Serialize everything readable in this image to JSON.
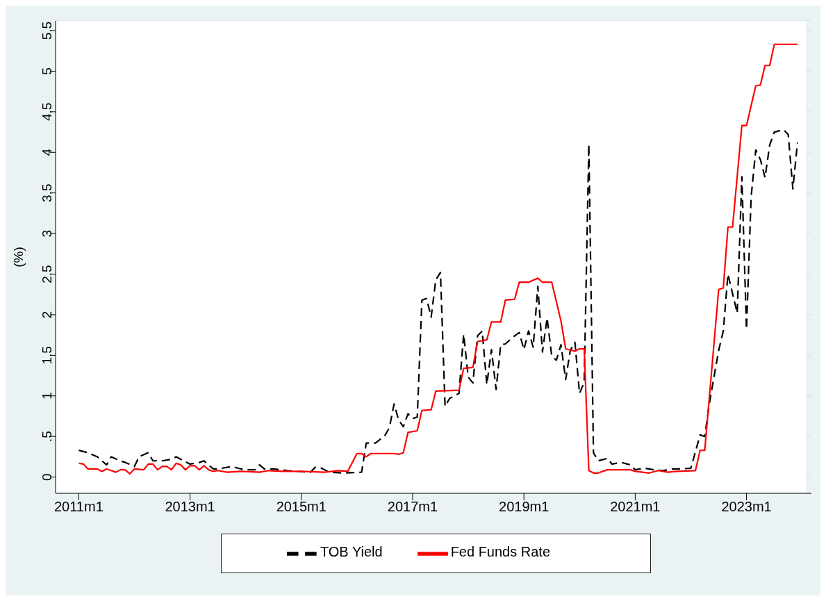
{
  "chart_data": {
    "type": "line",
    "ylabel": "(%)",
    "xlim": [
      "2010-08",
      "2024-03"
    ],
    "xticks": [
      {
        "value": "2011-01",
        "label": "2011m1"
      },
      {
        "value": "2013-01",
        "label": "2013m1"
      },
      {
        "value": "2015-01",
        "label": "2015m1"
      },
      {
        "value": "2017-01",
        "label": "2017m1"
      },
      {
        "value": "2019-01",
        "label": "2019m1"
      },
      {
        "value": "2021-01",
        "label": "2021m1"
      },
      {
        "value": "2023-01",
        "label": "2023m1"
      }
    ],
    "ylim": [
      -0.2,
      5.62
    ],
    "yticks": [
      0,
      {
        "value": 0.5,
        "label": ".5"
      },
      1,
      1.5,
      2,
      2.5,
      3,
      3.5,
      4,
      4.5,
      5,
      5.5
    ],
    "grid": "y",
    "legend": "bottom",
    "series": [
      {
        "name": "TOB Yield",
        "color": "#000000",
        "line_style": "dashed",
        "x": [
          "2011-01",
          "2011-03",
          "2011-05",
          "2011-07",
          "2011-08",
          "2011-10",
          "2011-11",
          "2012-01",
          "2012-02",
          "2012-04",
          "2012-05",
          "2012-07",
          "2012-09",
          "2012-10",
          "2013-01",
          "2013-03",
          "2013-04",
          "2013-06",
          "2013-07",
          "2013-10",
          "2013-12",
          "2014-01",
          "2014-03",
          "2014-04",
          "2014-05",
          "2014-07",
          "2014-10",
          "2014-12",
          "2015-03",
          "2015-04",
          "2015-05",
          "2015-07",
          "2015-10",
          "2016-02",
          "2016-03",
          "2016-05",
          "2016-07",
          "2016-08",
          "2016-09",
          "2016-10",
          "2016-11",
          "2016-12",
          "2017-01",
          "2017-02",
          "2017-03",
          "2017-04",
          "2017-05",
          "2017-06",
          "2017-07",
          "2017-08",
          "2017-09",
          "2017-11",
          "2017-12",
          "2018-01",
          "2018-02",
          "2018-03",
          "2018-04",
          "2018-05",
          "2018-06",
          "2018-07",
          "2018-08",
          "2018-09",
          "2018-11",
          "2018-12",
          "2019-01",
          "2019-02",
          "2019-03",
          "2019-04",
          "2019-05",
          "2019-06",
          "2019-07",
          "2019-08",
          "2019-09",
          "2019-10",
          "2019-11",
          "2019-12",
          "2020-01",
          "2020-02",
          "2020-03",
          "2020-04",
          "2020-05",
          "2020-07",
          "2020-08",
          "2020-10",
          "2020-12",
          "2021-01",
          "2021-03",
          "2021-05",
          "2021-07",
          "2021-09",
          "2021-11",
          "2022-01",
          "2022-03",
          "2022-04",
          "2022-05",
          "2022-07",
          "2022-08",
          "2022-09",
          "2022-11",
          "2022-12",
          "2023-01",
          "2023-02",
          "2023-03",
          "2023-04",
          "2023-05",
          "2023-06",
          "2023-07",
          "2023-09",
          "2023-10",
          "2023-11",
          "2023-12"
        ],
        "values": [
          0.33,
          0.3,
          0.25,
          0.15,
          0.25,
          0.2,
          0.18,
          0.13,
          0.25,
          0.3,
          0.2,
          0.2,
          0.22,
          0.25,
          0.16,
          0.18,
          0.2,
          0.1,
          0.1,
          0.13,
          0.1,
          0.09,
          0.09,
          0.15,
          0.1,
          0.1,
          0.08,
          0.07,
          0.06,
          0.12,
          0.12,
          0.06,
          0.05,
          0.06,
          0.42,
          0.42,
          0.51,
          0.61,
          0.9,
          0.7,
          0.62,
          0.78,
          0.72,
          0.74,
          2.18,
          2.2,
          1.97,
          2.43,
          2.52,
          0.87,
          0.97,
          1.03,
          1.76,
          1.23,
          1.16,
          1.74,
          1.8,
          1.14,
          1.57,
          1.08,
          1.63,
          1.64,
          1.74,
          1.78,
          1.57,
          1.8,
          1.6,
          2.35,
          1.54,
          1.96,
          1.49,
          1.44,
          1.63,
          1.2,
          1.56,
          1.66,
          1.03,
          1.17,
          4.1,
          0.3,
          0.2,
          0.23,
          0.16,
          0.18,
          0.15,
          0.09,
          0.11,
          0.09,
          0.08,
          0.1,
          0.1,
          0.11,
          0.52,
          0.5,
          0.91,
          1.56,
          1.8,
          2.5,
          2.02,
          3.7,
          1.82,
          3.45,
          4.03,
          3.91,
          3.69,
          4.09,
          4.25,
          4.28,
          4.22,
          3.55,
          4.12
        ]
      },
      {
        "name": "Fed Funds Rate",
        "color": "#ff0000",
        "line_style": "solid",
        "x": [
          "2011-01",
          "2011-02",
          "2011-03",
          "2011-05",
          "2011-06",
          "2011-07",
          "2011-08",
          "2011-09",
          "2011-10",
          "2011-11",
          "2011-12",
          "2012-01",
          "2012-03",
          "2012-04",
          "2012-05",
          "2012-06",
          "2012-07",
          "2012-08",
          "2012-09",
          "2012-10",
          "2012-11",
          "2012-12",
          "2013-01",
          "2013-02",
          "2013-03",
          "2013-04",
          "2013-05",
          "2013-06",
          "2013-07",
          "2013-09",
          "2013-12",
          "2014-04",
          "2014-06",
          "2014-09",
          "2015-01",
          "2015-06",
          "2015-09",
          "2015-11",
          "2016-01",
          "2016-02",
          "2016-03",
          "2016-04",
          "2016-09",
          "2016-10",
          "2016-11",
          "2016-12",
          "2017-02",
          "2017-03",
          "2017-05",
          "2017-06",
          "2017-11",
          "2017-12",
          "2018-02",
          "2018-03",
          "2018-05",
          "2018-06",
          "2018-08",
          "2018-09",
          "2018-11",
          "2018-12",
          "2019-02",
          "2019-04",
          "2019-05",
          "2019-07",
          "2019-09",
          "2019-10",
          "2019-12",
          "2020-01",
          "2020-02",
          "2020-03",
          "2020-04",
          "2020-05",
          "2020-07",
          "2020-12",
          "2021-01",
          "2021-04",
          "2021-06",
          "2021-08",
          "2021-10",
          "2022-02",
          "2022-03",
          "2022-04",
          "2022-07",
          "2022-08",
          "2022-09",
          "2022-10",
          "2022-12",
          "2023-01",
          "2023-03",
          "2023-04",
          "2023-05",
          "2023-06",
          "2023-07",
          "2023-12"
        ],
        "values": [
          0.17,
          0.16,
          0.1,
          0.1,
          0.07,
          0.1,
          0.08,
          0.06,
          0.09,
          0.09,
          0.04,
          0.1,
          0.09,
          0.16,
          0.16,
          0.09,
          0.13,
          0.13,
          0.09,
          0.17,
          0.15,
          0.09,
          0.14,
          0.14,
          0.09,
          0.14,
          0.09,
          0.07,
          0.08,
          0.06,
          0.07,
          0.06,
          0.08,
          0.07,
          0.07,
          0.06,
          0.08,
          0.07,
          0.29,
          0.29,
          0.25,
          0.29,
          0.29,
          0.28,
          0.3,
          0.55,
          0.57,
          0.82,
          0.83,
          1.06,
          1.07,
          1.34,
          1.35,
          1.67,
          1.69,
          1.91,
          1.91,
          2.18,
          2.19,
          2.4,
          2.4,
          2.45,
          2.4,
          2.4,
          1.92,
          1.58,
          1.55,
          1.58,
          1.58,
          0.08,
          0.05,
          0.05,
          0.09,
          0.09,
          0.07,
          0.05,
          0.08,
          0.06,
          0.07,
          0.08,
          0.33,
          0.33,
          2.31,
          2.33,
          3.08,
          3.08,
          4.33,
          4.33,
          4.82,
          4.83,
          5.07,
          5.07,
          5.33,
          5.33
        ]
      }
    ]
  }
}
